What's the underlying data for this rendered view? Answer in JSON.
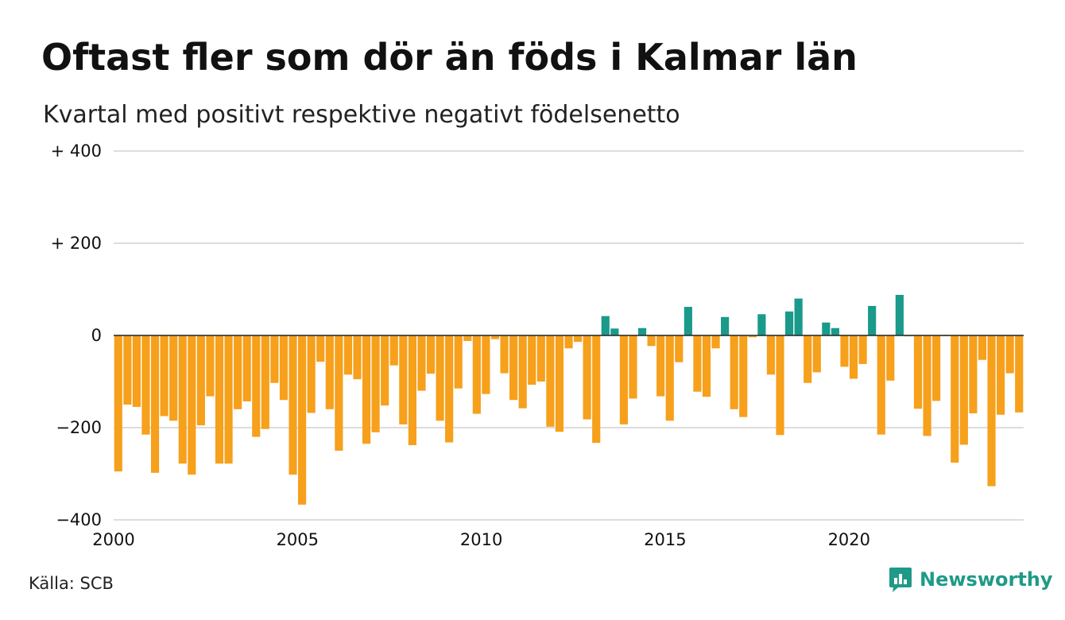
{
  "title": "Oftast fler som dör än föds i Kalmar län",
  "subtitle": "Kvartal med positivt respektive negativt födelsenetto",
  "source": "Källa: SCB",
  "brand": {
    "name": "Newsworthy",
    "icon": "newsworthy-logo-icon",
    "color": "#1f9a88"
  },
  "colors": {
    "positive": "#1a9a8a",
    "negative": "#f6a01c",
    "grid": "#dddddd",
    "zero_line": "#222222"
  },
  "chart_data": {
    "type": "bar",
    "title": "Oftast fler som dör än föds i Kalmar län",
    "subtitle": "Kvartal med positivt respektive negativt födelsenetto",
    "xlabel": "",
    "ylabel": "",
    "x_ticks": [
      2000,
      2005,
      2010,
      2015,
      2020
    ],
    "y_ticks": [
      {
        "value": 400,
        "label": "+ 400"
      },
      {
        "value": 200,
        "label": "+ 200"
      },
      {
        "value": 0,
        "label": "0"
      },
      {
        "value": -200,
        "label": "−200"
      },
      {
        "value": -400,
        "label": "−400"
      }
    ],
    "ylim": [
      -400,
      400
    ],
    "grid": true,
    "first_quarter": "2000 Q1",
    "values": [
      -295,
      -150,
      -155,
      -215,
      -298,
      -175,
      -185,
      -278,
      -302,
      -195,
      -132,
      -278,
      -278,
      -160,
      -143,
      -220,
      -203,
      -103,
      -140,
      -302,
      -367,
      -168,
      -57,
      -160,
      -250,
      -85,
      -95,
      -235,
      -210,
      -152,
      -65,
      -193,
      -238,
      -120,
      -83,
      -185,
      -232,
      -115,
      -12,
      -170,
      -127,
      -8,
      -82,
      -140,
      -158,
      -107,
      -100,
      -198,
      -209,
      -28,
      -14,
      -182,
      -233,
      42,
      15,
      -193,
      -137,
      16,
      -23,
      -132,
      -185,
      -58,
      62,
      -122,
      -133,
      -28,
      40,
      -160,
      -177,
      -4,
      46,
      -85,
      -216,
      52,
      80,
      -103,
      -80,
      28,
      16,
      -68,
      -94,
      -62,
      64,
      -215,
      -98,
      88,
      -2,
      -159,
      -218,
      -142,
      -1,
      -276,
      -237,
      -169,
      -53,
      -327,
      -172,
      -82,
      -167
    ]
  }
}
